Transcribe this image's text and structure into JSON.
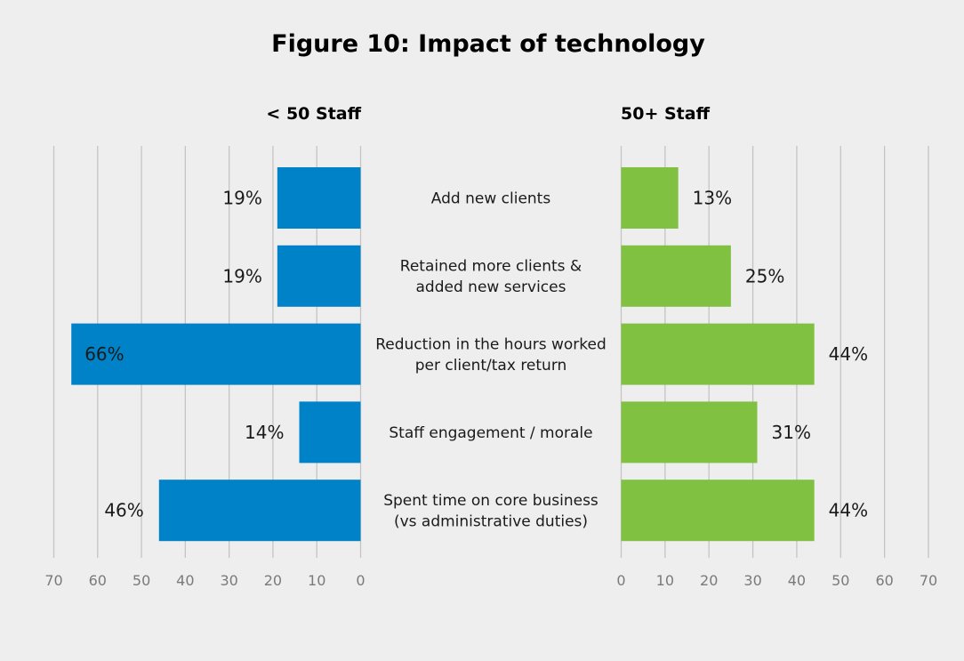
{
  "chart_data": {
    "type": "bar",
    "title": "Figure 10: Impact of technology",
    "orientation": "horizontal",
    "layout": "butterfly",
    "categories": [
      "Add new clients",
      "Retained more clients & added new services",
      "Reduction in the hours worked per client/tax return",
      "Staff engagement / morale",
      "Spent time on core business (vs administrative duties)"
    ],
    "category_lines": [
      [
        "Add new clients"
      ],
      [
        "Retained more clients &",
        "added new services"
      ],
      [
        "Reduction in the hours worked",
        "per client/tax return"
      ],
      [
        "Staff engagement / morale"
      ],
      [
        "Spent time on core business",
        "(vs administrative duties)"
      ]
    ],
    "series": [
      {
        "name": "< 50 Staff",
        "color": "#0082c8",
        "direction": "left",
        "values": [
          19,
          19,
          66,
          14,
          46
        ],
        "labels": [
          "19%",
          "19%",
          "66%",
          "14%",
          "46%"
        ]
      },
      {
        "name": "50+ Staff",
        "color": "#80c142",
        "direction": "right",
        "values": [
          13,
          25,
          44,
          31,
          44
        ],
        "labels": [
          "13%",
          "25%",
          "44%",
          "31%",
          "44%"
        ]
      }
    ],
    "xlim": [
      0,
      70
    ],
    "xticks": [
      0,
      10,
      20,
      30,
      40,
      50,
      60,
      70
    ],
    "xtick_labels": [
      "0",
      "10",
      "20",
      "30",
      "40",
      "50",
      "60",
      "70"
    ],
    "xlabel": "",
    "ylabel": "",
    "grid": true,
    "legend": "none"
  }
}
